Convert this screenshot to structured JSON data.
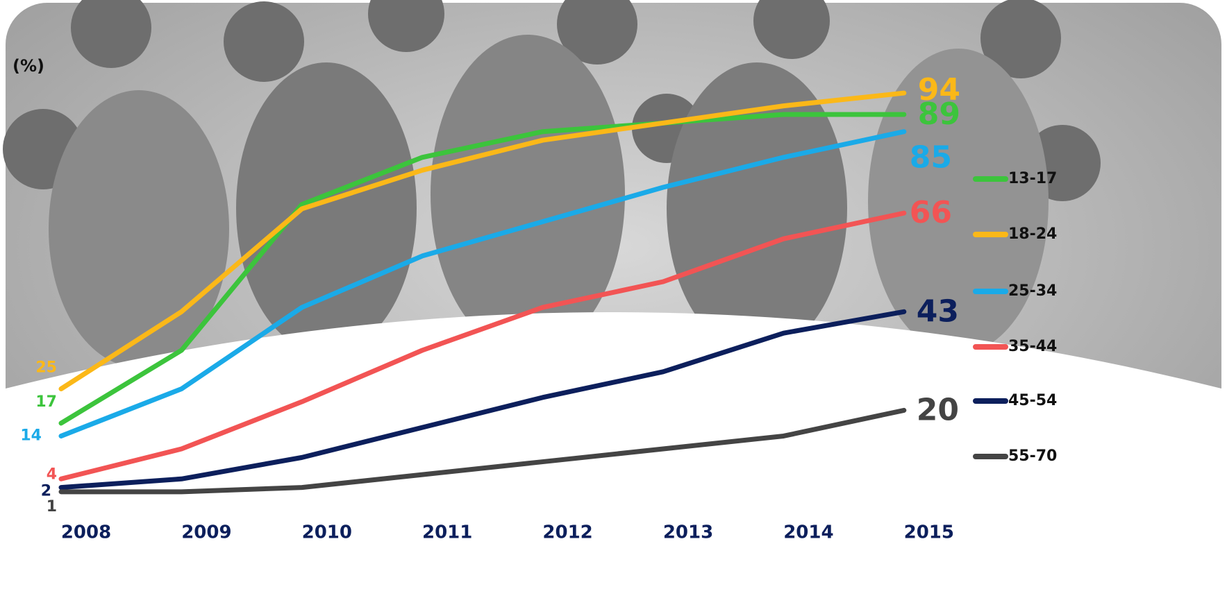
{
  "chart_data": {
    "type": "line",
    "y_label": "(%)",
    "categories": [
      "2008",
      "2009",
      "2010",
      "2011",
      "2012",
      "2013",
      "2014",
      "2015"
    ],
    "ylim": [
      0,
      100
    ],
    "series": [
      {
        "name": "13-17",
        "color": "#3cc43c",
        "values": [
          17,
          34,
          68,
          79,
          85,
          87,
          89,
          89
        ]
      },
      {
        "name": "18-24",
        "color": "#fbb818",
        "values": [
          25,
          43,
          67,
          76,
          83,
          87,
          91,
          94
        ]
      },
      {
        "name": "25-34",
        "color": "#1aaae8",
        "values": [
          14,
          25,
          44,
          56,
          64,
          72,
          79,
          85
        ]
      },
      {
        "name": "35-44",
        "color": "#f25454",
        "values": [
          4,
          11,
          22,
          34,
          44,
          50,
          60,
          66
        ]
      },
      {
        "name": "45-54",
        "color": "#0c1f5c",
        "values": [
          2,
          4,
          9,
          16,
          23,
          29,
          38,
          43
        ]
      },
      {
        "name": "55-70",
        "color": "#444444",
        "values": [
          1,
          1,
          2,
          5,
          8,
          11,
          14,
          20
        ]
      }
    ]
  }
}
